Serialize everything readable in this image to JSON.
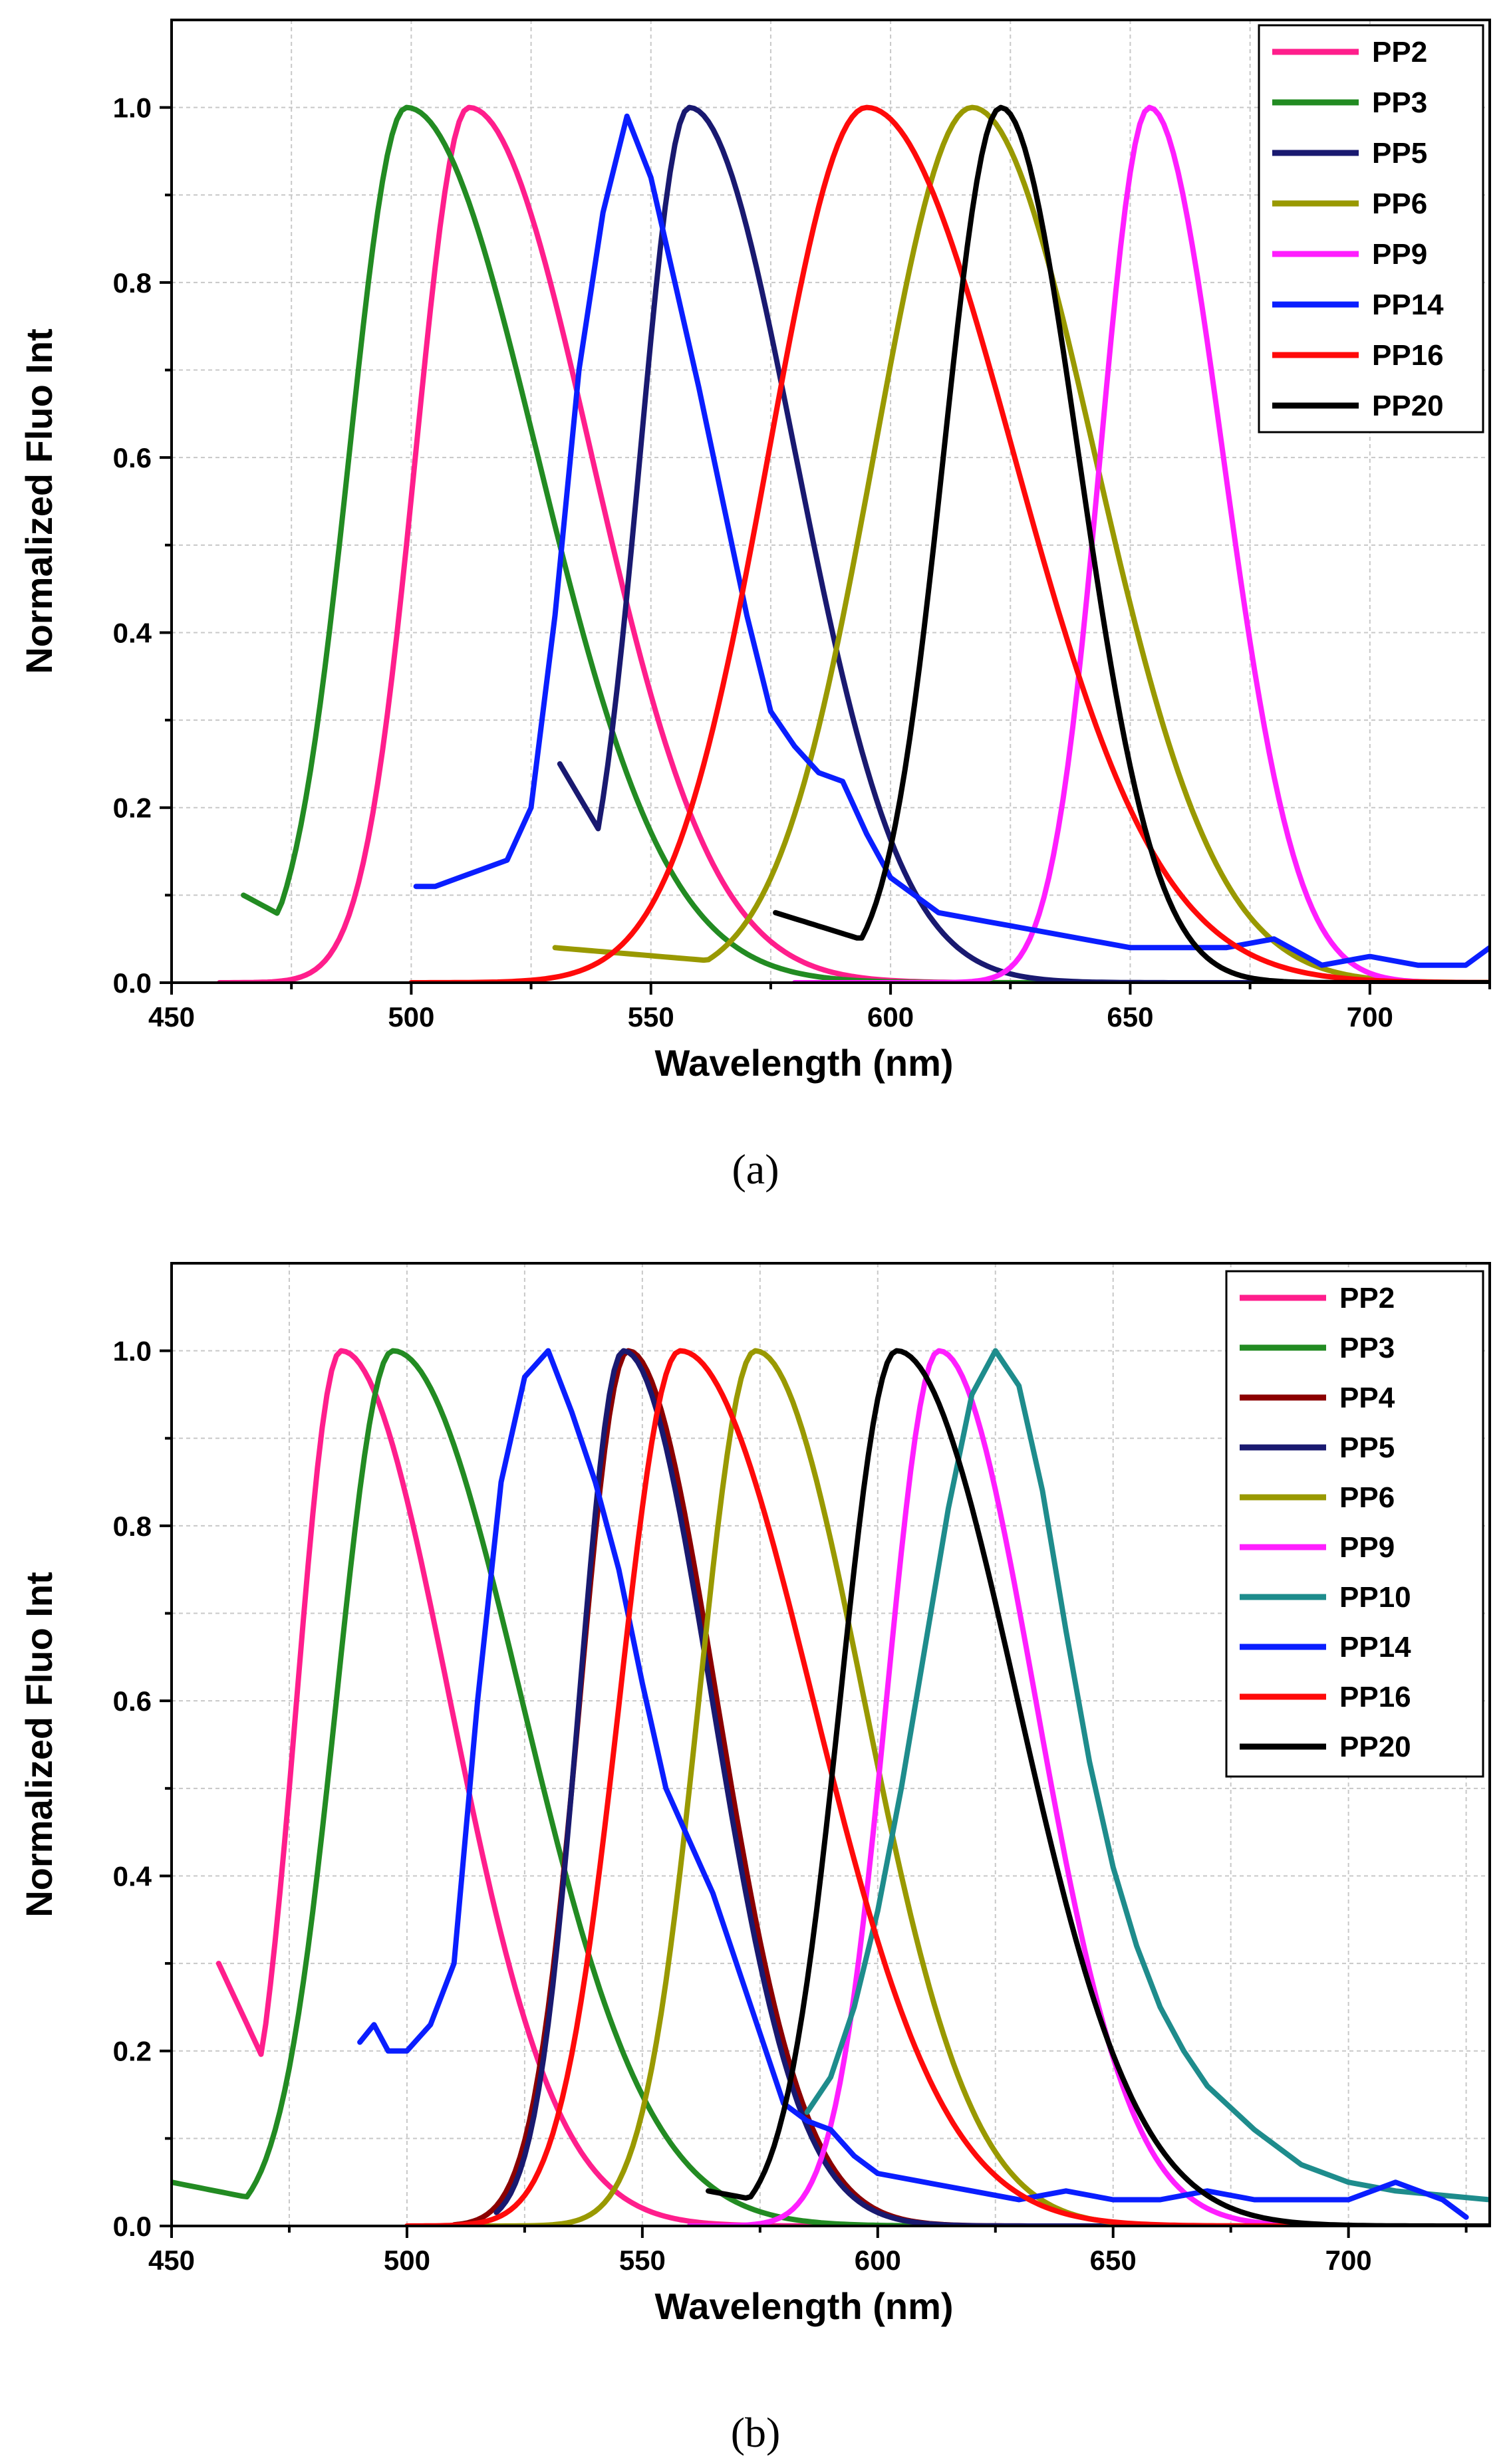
{
  "chart_data": [
    {
      "type": "line",
      "panel_label": "(a)",
      "xlabel": "Wavelength (nm)",
      "ylabel": "Normalized Fluo Int",
      "xlim": [
        450,
        725
      ],
      "ylim": [
        0,
        1.1
      ],
      "xticks": [
        450,
        500,
        550,
        600,
        650,
        700
      ],
      "xtick_labels": [
        "450",
        "500",
        "550",
        "600",
        "650",
        "700"
      ],
      "yticks": [
        0.0,
        0.2,
        0.4,
        0.6,
        0.8,
        1.0
      ],
      "ytick_labels": [
        "0.0",
        "0.2",
        "0.4",
        "0.6",
        "0.8",
        "1.0"
      ],
      "grid": true,
      "legend_position": "top-right",
      "series": [
        {
          "name": "PP2",
          "color": "#ff1e8c",
          "shape": "curve",
          "start": 460,
          "end": 725,
          "peak": 512,
          "left_width": 13,
          "right_width": 30
        },
        {
          "name": "PP3",
          "color": "#228b22",
          "shape": "curve",
          "start": 465,
          "end": 660,
          "peak": 499,
          "left_width": 14,
          "right_width": 32,
          "start_value": 0.1
        },
        {
          "name": "PP5",
          "color": "#191970",
          "shape": "curve",
          "start": 531,
          "end": 725,
          "peak": 558,
          "left_width": 12,
          "right_width": 26,
          "start_value": 0.25
        },
        {
          "name": "PP6",
          "color": "#999900",
          "shape": "curve",
          "start": 530,
          "end": 725,
          "peak": 617,
          "left_width": 24,
          "right_width": 30,
          "start_value": 0.04
        },
        {
          "name": "PP9",
          "color": "#ff1eff",
          "shape": "curve",
          "start": 580,
          "end": 725,
          "peak": 654,
          "left_width": 12,
          "right_width": 18
        },
        {
          "name": "PP14",
          "color": "#0a1eff",
          "shape": "points",
          "x": [
            501,
            505,
            510,
            515,
            520,
            525,
            530,
            535,
            540,
            545,
            550,
            555,
            560,
            565,
            570,
            575,
            580,
            585,
            590,
            595,
            600,
            610,
            620,
            630,
            640,
            650,
            660,
            670,
            680,
            690,
            700,
            710,
            720,
            725
          ],
          "y": [
            0.11,
            0.11,
            0.12,
            0.13,
            0.14,
            0.2,
            0.42,
            0.7,
            0.88,
            0.99,
            0.92,
            0.8,
            0.68,
            0.55,
            0.42,
            0.31,
            0.27,
            0.24,
            0.23,
            0.17,
            0.12,
            0.08,
            0.07,
            0.06,
            0.05,
            0.04,
            0.04,
            0.04,
            0.05,
            0.02,
            0.03,
            0.02,
            0.02,
            0.04
          ]
        },
        {
          "name": "PP16",
          "color": "#ff0a0a",
          "shape": "curve",
          "start": 500,
          "end": 725,
          "peak": 595,
          "left_width": 24,
          "right_width": 36
        },
        {
          "name": "PP20",
          "color": "#000000",
          "shape": "curve",
          "start": 576,
          "end": 725,
          "peak": 623,
          "left_width": 14,
          "right_width": 19,
          "start_value": 0.08
        }
      ]
    },
    {
      "type": "line",
      "panel_label": "(b)",
      "xlabel": "Wavelength (nm)",
      "ylabel": "Normalized Fluo Int",
      "xlim": [
        450,
        730
      ],
      "ylim": [
        0,
        1.1
      ],
      "xticks": [
        450,
        500,
        550,
        600,
        650,
        700
      ],
      "xtick_labels": [
        "450",
        "500",
        "550",
        "600",
        "650",
        "700"
      ],
      "yticks": [
        0.0,
        0.2,
        0.4,
        0.6,
        0.8,
        1.0
      ],
      "ytick_labels": [
        "0.0",
        "0.2",
        "0.4",
        "0.6",
        "0.8",
        "1.0"
      ],
      "grid": true,
      "legend_position": "top-right",
      "series": [
        {
          "name": "PP2",
          "color": "#ff1e8c",
          "shape": "curve",
          "start": 460,
          "end": 730,
          "peak": 486,
          "left_width": 11,
          "right_width": 27,
          "start_value": 0.3
        },
        {
          "name": "PP3",
          "color": "#228b22",
          "shape": "curve",
          "start": 450,
          "end": 730,
          "peak": 497,
          "left_width": 14,
          "right_width": 32,
          "start_value": 0.05
        },
        {
          "name": "PP4",
          "color": "#8b0000",
          "shape": "curve",
          "start": 510,
          "end": 730,
          "peak": 547,
          "left_width": 12,
          "right_width": 22
        },
        {
          "name": "PP5",
          "color": "#191970",
          "shape": "curve",
          "start": 519,
          "end": 730,
          "peak": 546,
          "left_width": 11,
          "right_width": 22
        },
        {
          "name": "PP6",
          "color": "#999900",
          "shape": "curve",
          "start": 515,
          "end": 730,
          "peak": 574,
          "left_width": 14,
          "right_width": 27
        },
        {
          "name": "PP9",
          "color": "#ff1eff",
          "shape": "curve",
          "start": 560,
          "end": 730,
          "peak": 613,
          "left_width": 13,
          "right_width": 24
        },
        {
          "name": "PP10",
          "color": "#1e8c8c",
          "shape": "points",
          "x": [
            585,
            590,
            595,
            600,
            605,
            610,
            615,
            620,
            625,
            630,
            635,
            640,
            645,
            650,
            655,
            660,
            665,
            670,
            680,
            690,
            700,
            710,
            720,
            730
          ],
          "y": [
            0.13,
            0.17,
            0.25,
            0.36,
            0.5,
            0.66,
            0.82,
            0.95,
            1.0,
            0.96,
            0.84,
            0.68,
            0.53,
            0.41,
            0.32,
            0.25,
            0.2,
            0.16,
            0.11,
            0.07,
            0.05,
            0.04,
            0.035,
            0.03
          ]
        },
        {
          "name": "PP14",
          "color": "#0a1eff",
          "shape": "points",
          "x": [
            490,
            493,
            496,
            500,
            505,
            510,
            515,
            520,
            525,
            530,
            535,
            540,
            545,
            550,
            555,
            560,
            565,
            570,
            575,
            580,
            585,
            590,
            595,
            600,
            610,
            620,
            630,
            640,
            650,
            660,
            670,
            680,
            690,
            700,
            710,
            720,
            725
          ],
          "y": [
            0.21,
            0.23,
            0.2,
            0.2,
            0.23,
            0.3,
            0.6,
            0.85,
            0.97,
            1.0,
            0.93,
            0.85,
            0.75,
            0.62,
            0.5,
            0.44,
            0.38,
            0.3,
            0.22,
            0.14,
            0.12,
            0.11,
            0.08,
            0.06,
            0.05,
            0.04,
            0.03,
            0.04,
            0.03,
            0.03,
            0.04,
            0.03,
            0.03,
            0.03,
            0.05,
            0.03,
            0.01
          ]
        },
        {
          "name": "PP16",
          "color": "#ff0a0a",
          "shape": "curve",
          "start": 500,
          "end": 730,
          "peak": 558,
          "left_width": 15,
          "right_width": 33
        },
        {
          "name": "PP20",
          "color": "#000000",
          "shape": "curve",
          "start": 564,
          "end": 730,
          "peak": 604,
          "left_width": 14,
          "right_width": 30,
          "start_value": 0.04
        }
      ]
    }
  ]
}
